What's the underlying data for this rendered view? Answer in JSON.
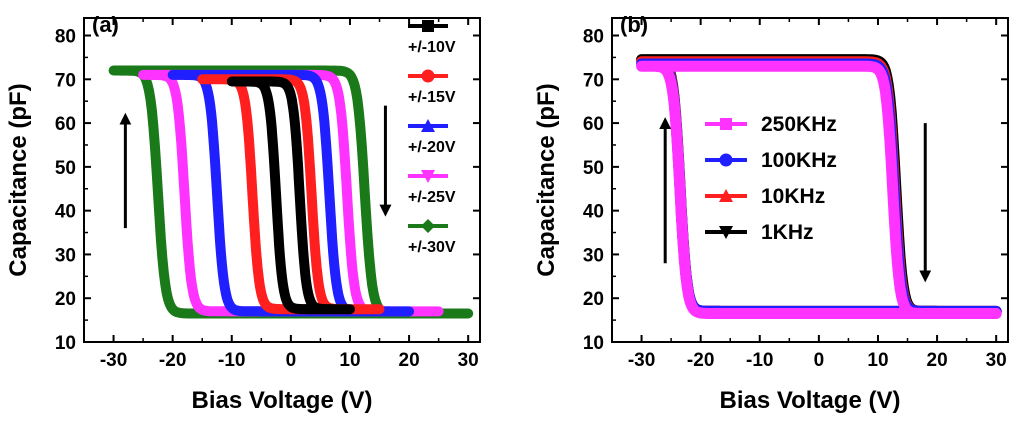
{
  "chart_data": [
    {
      "panel_label": "(a)",
      "type": "line",
      "subtype": "hysteresis-loop",
      "xlabel": "Bias Voltage (V)",
      "ylabel": "Capacitance (pF)",
      "xlim": [
        -35,
        32
      ],
      "ylim": [
        10,
        84
      ],
      "xticks": [
        -30,
        -20,
        -10,
        0,
        10,
        20,
        30
      ],
      "yticks": [
        10,
        20,
        30,
        40,
        50,
        60,
        70,
        80
      ],
      "grid": false,
      "legend_position": "top-right",
      "arrows": [
        {
          "direction": "up",
          "x": -28,
          "y_from": 36,
          "y_to": 61
        },
        {
          "direction": "down",
          "x": 16,
          "y_from": 64,
          "y_to": 40
        }
      ],
      "series": [
        {
          "name": "+/-30V",
          "color": "#1a7a1a",
          "v_sweep": 30,
          "c_low": 16.5,
          "c_high": 72,
          "forward_switch_center": 12.5,
          "reverse_switch_center": -22.5,
          "transition_width": 2.5
        },
        {
          "name": "+/-25V",
          "color": "#ff33ff",
          "v_sweep": 25,
          "c_low": 17,
          "c_high": 71,
          "forward_switch_center": 9.5,
          "reverse_switch_center": -18,
          "transition_width": 2.4
        },
        {
          "name": "+/-20V",
          "color": "#1f1fff",
          "v_sweep": 20,
          "c_low": 17,
          "c_high": 71,
          "forward_switch_center": 6.5,
          "reverse_switch_center": -12.5,
          "transition_width": 2.4
        },
        {
          "name": "+/-15V",
          "color": "#ff1f1f",
          "v_sweep": 15,
          "c_low": 17.5,
          "c_high": 70,
          "forward_switch_center": 3.5,
          "reverse_switch_center": -6.5,
          "transition_width": 2.3
        },
        {
          "name": "+/-10V",
          "color": "#000000",
          "v_sweep": 10,
          "c_low": 17.5,
          "c_high": 69.5,
          "forward_switch_center": 1.5,
          "reverse_switch_center": -2.5,
          "transition_width": 2.2
        }
      ]
    },
    {
      "panel_label": "(b)",
      "type": "line",
      "subtype": "hysteresis-loop",
      "xlabel": "Bias Voltage (V)",
      "ylabel": "Capacitance (pF)",
      "xlim": [
        -35,
        32
      ],
      "ylim": [
        10,
        84
      ],
      "xticks": [
        -30,
        -20,
        -10,
        0,
        10,
        20,
        30
      ],
      "yticks": [
        10,
        20,
        30,
        40,
        50,
        60,
        70,
        80
      ],
      "grid": false,
      "legend_position": "center",
      "arrows": [
        {
          "direction": "up",
          "x": -26,
          "y_from": 28,
          "y_to": 60
        },
        {
          "direction": "down",
          "x": 18,
          "y_from": 60,
          "y_to": 25
        }
      ],
      "series": [
        {
          "name": "1KHz",
          "color": "#000000",
          "v_sweep": 30,
          "c_low": 17,
          "c_high": 74.5,
          "forward_switch_center": 13,
          "reverse_switch_center": -23.5,
          "transition_width": 2.3
        },
        {
          "name": "10KHz",
          "color": "#ff1f1f",
          "v_sweep": 30,
          "c_low": 17,
          "c_high": 74,
          "forward_switch_center": 12.8,
          "reverse_switch_center": -23.5,
          "transition_width": 2.3
        },
        {
          "name": "100KHz",
          "color": "#1f1fff",
          "v_sweep": 30,
          "c_low": 17,
          "c_high": 73.5,
          "forward_switch_center": 12.7,
          "reverse_switch_center": -23.5,
          "transition_width": 2.3
        },
        {
          "name": "250KHz",
          "color": "#ff33ff",
          "v_sweep": 30,
          "c_low": 16.5,
          "c_high": 73,
          "forward_switch_center": 12.5,
          "reverse_switch_center": -23.5,
          "transition_width": 2.3
        }
      ]
    }
  ]
}
